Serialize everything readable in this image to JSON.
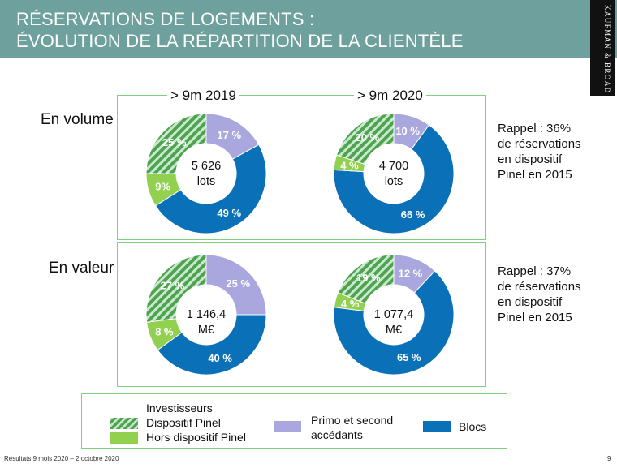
{
  "header": {
    "title_line1": "RÉSERVATIONS DE LOGEMENTS :",
    "title_line2": "ÉVOLUTION DE LA RÉPARTITION DE LA CLIENTÈLE",
    "logo": "KAUFMAN & BROAD"
  },
  "columns": [
    "> 9m 2019",
    "> 9m 2020"
  ],
  "rows": [
    "En volume",
    "En valeur"
  ],
  "colors": {
    "investisseurs_pinel": "#4fa34f",
    "hors_pinel": "#92d050",
    "primo": "#a9a7dd",
    "blocs": "#0a70b8"
  },
  "chart_data": [
    {
      "type": "pie",
      "title": "> 9m 2019 — En volume",
      "center_line1": "5 626",
      "center_line2": "lots",
      "slices": [
        {
          "category": "primo",
          "value": 17,
          "label": "17 %"
        },
        {
          "category": "blocs",
          "value": 49,
          "label": "49 %"
        },
        {
          "category": "hors_pinel",
          "value": 9,
          "label": "9%"
        },
        {
          "category": "investisseurs_pinel",
          "value": 25,
          "label": "25 %"
        }
      ]
    },
    {
      "type": "pie",
      "title": "> 9m 2020 — En volume",
      "center_line1": "4 700",
      "center_line2": "lots",
      "slices": [
        {
          "category": "primo",
          "value": 10,
          "label": "10 %"
        },
        {
          "category": "blocs",
          "value": 66,
          "label": "66 %"
        },
        {
          "category": "hors_pinel",
          "value": 4,
          "label": "4 %"
        },
        {
          "category": "investisseurs_pinel",
          "value": 20,
          "label": "20 %"
        }
      ]
    },
    {
      "type": "pie",
      "title": "> 9m 2019 — En valeur",
      "center_line1": "1 146,4",
      "center_line2": "M€",
      "slices": [
        {
          "category": "primo",
          "value": 25,
          "label": "25 %"
        },
        {
          "category": "blocs",
          "value": 40,
          "label": "40 %"
        },
        {
          "category": "hors_pinel",
          "value": 8,
          "label": "8 %"
        },
        {
          "category": "investisseurs_pinel",
          "value": 27,
          "label": "27 %"
        }
      ]
    },
    {
      "type": "pie",
      "title": "> 9m 2020 — En valeur",
      "center_line1": "1 077,4",
      "center_line2": "M€",
      "slices": [
        {
          "category": "primo",
          "value": 12,
          "label": "12 %"
        },
        {
          "category": "blocs",
          "value": 65,
          "label": "65 %"
        },
        {
          "category": "hors_pinel",
          "value": 4,
          "label": "4 %"
        },
        {
          "category": "investisseurs_pinel",
          "value": 19,
          "label": "19 %"
        }
      ]
    }
  ],
  "rappel": [
    {
      "lines": [
        "Rappel : 36%",
        "de réservations",
        "en dispositif",
        "Pinel en 2015"
      ]
    },
    {
      "lines": [
        "Rappel : 37%",
        "de réservations",
        "en dispositif",
        "Pinel en 2015"
      ]
    }
  ],
  "legend": {
    "investisseurs": "Investisseurs",
    "pinel": "Dispositif Pinel",
    "hors_pinel": "Hors dispositif Pinel",
    "primo_line1": "Primo et second",
    "primo_line2": "accédants",
    "blocs": "Blocs"
  },
  "footer": {
    "text": "Résultats 9 mois 2020 – 2 octobre 2020",
    "page": "9"
  }
}
